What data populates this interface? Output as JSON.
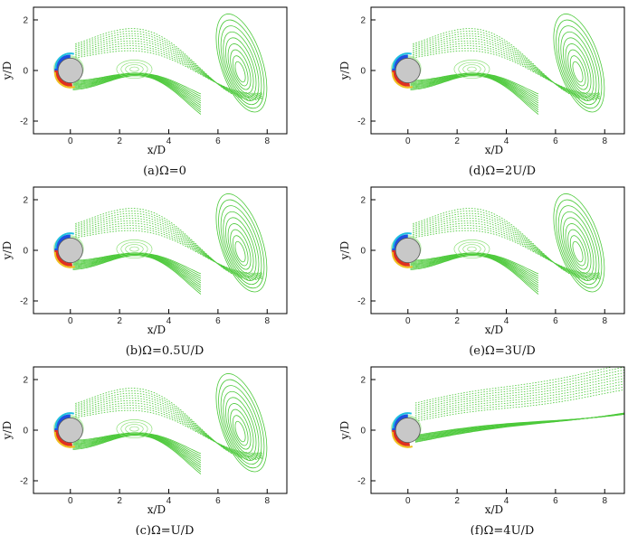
{
  "chart_data": [
    {
      "type": "contour",
      "caption": "(a)Ω=0",
      "xlabel": "x/D",
      "ylabel": "y/D",
      "xlim": [
        -1.5,
        8.8
      ],
      "ylim": [
        -2.5,
        2.5
      ],
      "xticks": [
        0,
        2,
        4,
        6,
        8
      ],
      "yticks": [
        -2,
        0,
        2
      ],
      "wake": "shedding"
    },
    {
      "type": "contour",
      "caption": "(b)Ω=0.5U/D",
      "xlabel": "x/D",
      "ylabel": "y/D",
      "xlim": [
        -1.5,
        8.8
      ],
      "ylim": [
        -2.5,
        2.5
      ],
      "xticks": [
        0,
        2,
        4,
        6,
        8
      ],
      "yticks": [
        -2,
        0,
        2
      ],
      "wake": "shedding"
    },
    {
      "type": "contour",
      "caption": "(c)Ω=U/D",
      "xlabel": "x/D",
      "ylabel": "y/D",
      "xlim": [
        -1.5,
        8.8
      ],
      "ylim": [
        -2.5,
        2.5
      ],
      "xticks": [
        0,
        2,
        4,
        6,
        8
      ],
      "yticks": [
        -2,
        0,
        2
      ],
      "wake": "shedding"
    },
    {
      "type": "contour",
      "caption": "(d)Ω=2U/D",
      "xlabel": "x/D",
      "ylabel": "y/D",
      "xlim": [
        -1.5,
        8.8
      ],
      "ylim": [
        -2.5,
        2.5
      ],
      "xticks": [
        0,
        2,
        4,
        6,
        8
      ],
      "yticks": [
        -2,
        0,
        2
      ],
      "wake": "shedding"
    },
    {
      "type": "contour",
      "caption": "(e)Ω=3U/D",
      "xlabel": "x/D",
      "ylabel": "y/D",
      "xlim": [
        -1.5,
        8.8
      ],
      "ylim": [
        -2.5,
        2.5
      ],
      "xticks": [
        0,
        2,
        4,
        6,
        8
      ],
      "yticks": [
        -2,
        0,
        2
      ],
      "wake": "shedding"
    },
    {
      "type": "contour",
      "caption": "(f)Ω=4U/D",
      "xlabel": "x/D",
      "ylabel": "y/D",
      "xlim": [
        -1.5,
        8.8
      ],
      "ylim": [
        -2.5,
        2.5
      ],
      "xticks": [
        0,
        2,
        4,
        6,
        8
      ],
      "yticks": [
        -2,
        0,
        2
      ],
      "wake": "deflected"
    }
  ],
  "colors": {
    "contour_green": "#4cc93a",
    "contour_light": "#8ee07a",
    "cylinder": "#c8c8c8",
    "high": "#e03020",
    "mid": "#f0c020",
    "low": "#2050e0",
    "cyan": "#20c0e0"
  }
}
